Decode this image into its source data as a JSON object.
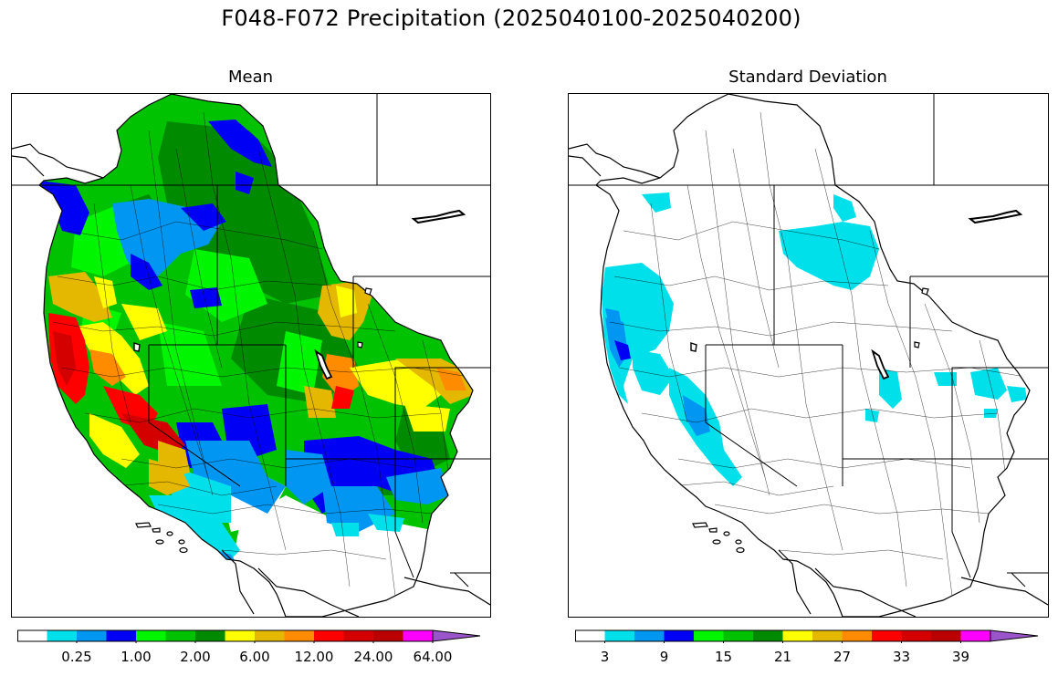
{
  "figure": {
    "title": "F048-F072 Precipitation (2025040100-2025040200)"
  },
  "panels": [
    {
      "id": "mean",
      "title": "Mean",
      "colorbar": {
        "labels": [
          "0.25",
          "1.00",
          "2.00",
          "6.00",
          "12.00",
          "24.00",
          "64.00"
        ],
        "label_bin_edges": [
          2,
          4,
          6,
          8,
          10,
          12,
          14
        ],
        "extend": "max"
      },
      "legend": [
        {
          "color": "#ffffff",
          "meaning": "lowest class"
        },
        {
          "color": "#00e0ea"
        },
        {
          "color": "#0096f2"
        },
        {
          "color": "#0000f5"
        },
        {
          "color": "#00f500"
        },
        {
          "color": "#00c200"
        },
        {
          "color": "#008a00"
        },
        {
          "color": "#ffff00"
        },
        {
          "color": "#e5b800"
        },
        {
          "color": "#ff8c00"
        },
        {
          "color": "#ff0000"
        },
        {
          "color": "#d40000"
        },
        {
          "color": "#bb0000"
        },
        {
          "color": "#ff00ff"
        },
        {
          "color": "#9955c9"
        }
      ]
    },
    {
      "id": "sd",
      "title": "Standard Deviation",
      "colorbar": {
        "labels": [
          "3",
          "9",
          "15",
          "21",
          "27",
          "33",
          "39"
        ],
        "label_bin_edges": [
          1,
          3,
          5,
          7,
          9,
          11,
          13
        ],
        "extend": "max"
      },
      "legend": [
        {
          "color": "#ffffff"
        },
        {
          "color": "#00e0ea"
        },
        {
          "color": "#0096f2"
        },
        {
          "color": "#0000f5"
        },
        {
          "color": "#00f500"
        },
        {
          "color": "#00c200"
        },
        {
          "color": "#008a00"
        },
        {
          "color": "#ffff00"
        },
        {
          "color": "#e5b800"
        },
        {
          "color": "#ff8c00"
        },
        {
          "color": "#ff0000"
        },
        {
          "color": "#d40000"
        },
        {
          "color": "#bb0000"
        },
        {
          "color": "#ff00ff"
        },
        {
          "color": "#9955c9"
        }
      ]
    }
  ]
}
